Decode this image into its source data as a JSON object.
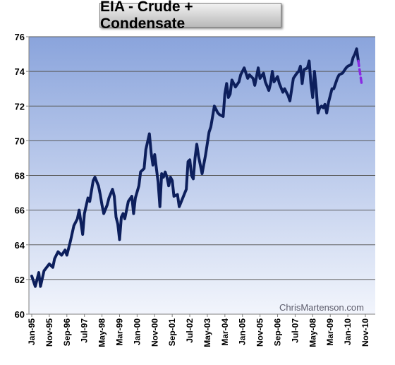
{
  "chart_data": {
    "type": "line",
    "title": "EIA - Crude + Condensate",
    "xlabel": "",
    "ylabel": "",
    "ylim": [
      60,
      76
    ],
    "yticks": [
      60,
      62,
      64,
      66,
      68,
      70,
      72,
      74,
      76
    ],
    "xticks": [
      "Jan-95",
      "Nov-95",
      "Sep-96",
      "Jul-97",
      "May-98",
      "Mar-99",
      "Jan-00",
      "Nov-00",
      "Sep-01",
      "Jul-02",
      "May-03",
      "Mar-04",
      "Jan-05",
      "Nov-05",
      "Sep-06",
      "Jul-07",
      "May-08",
      "Mar-09",
      "Jan-10",
      "Nov-10"
    ],
    "grid": true,
    "watermark": "ChrisMartenson.com",
    "colors": {
      "line": "#0d1f5c",
      "projection": "#8a2be2",
      "plot_top": "#8aa4dc",
      "plot_bottom": "#f2f5fc",
      "grid": "#5a5a5a"
    },
    "series": [
      {
        "style": "solid",
        "points": [
          [
            "Jan-95",
            62.2
          ],
          [
            "Mar-95",
            61.6
          ],
          [
            "May-95",
            62.4
          ],
          [
            "Jun-95",
            61.6
          ],
          [
            "Aug-95",
            62.5
          ],
          [
            "Nov-95",
            62.9
          ],
          [
            "Jan-96",
            62.7
          ],
          [
            "Feb-96",
            63.2
          ],
          [
            "Apr-96",
            63.6
          ],
          [
            "Jun-96",
            63.4
          ],
          [
            "Aug-96",
            63.7
          ],
          [
            "Sep-96",
            63.4
          ],
          [
            "Nov-96",
            64.2
          ],
          [
            "Jan-97",
            65.1
          ],
          [
            "Mar-97",
            65.5
          ],
          [
            "Apr-97",
            66.0
          ],
          [
            "May-97",
            65.3
          ],
          [
            "Jun-97",
            64.6
          ],
          [
            "Jul-97",
            65.8
          ],
          [
            "Sep-97",
            66.7
          ],
          [
            "Oct-97",
            66.5
          ],
          [
            "Dec-97",
            67.7
          ],
          [
            "Jan-98",
            67.9
          ],
          [
            "Mar-98",
            67.4
          ],
          [
            "Apr-98",
            66.9
          ],
          [
            "May-98",
            66.3
          ],
          [
            "Jun-98",
            65.8
          ],
          [
            "Aug-98",
            66.3
          ],
          [
            "Sep-98",
            66.7
          ],
          [
            "Nov-98",
            67.2
          ],
          [
            "Dec-98",
            66.8
          ],
          [
            "Jan-99",
            65.6
          ],
          [
            "Feb-99",
            65.2
          ],
          [
            "Mar-99",
            64.3
          ],
          [
            "Apr-99",
            65.6
          ],
          [
            "May-99",
            65.8
          ],
          [
            "Jun-99",
            65.5
          ],
          [
            "Aug-99",
            66.5
          ],
          [
            "Oct-99",
            66.8
          ],
          [
            "Nov-99",
            65.8
          ],
          [
            "Dec-99",
            66.7
          ],
          [
            "Feb-00",
            67.4
          ],
          [
            "Mar-00",
            68.2
          ],
          [
            "May-00",
            68.4
          ],
          [
            "Jun-00",
            69.5
          ],
          [
            "Aug-00",
            70.4
          ],
          [
            "Sep-00",
            69.3
          ],
          [
            "Oct-00",
            68.6
          ],
          [
            "Nov-00",
            69.2
          ],
          [
            "Jan-01",
            67.6
          ],
          [
            "Feb-01",
            66.2
          ],
          [
            "Mar-01",
            68.1
          ],
          [
            "Apr-01",
            67.9
          ],
          [
            "May-01",
            68.2
          ],
          [
            "Jun-01",
            67.9
          ],
          [
            "Jul-01",
            67.4
          ],
          [
            "Aug-01",
            67.9
          ],
          [
            "Sep-01",
            67.7
          ],
          [
            "Oct-01",
            66.8
          ],
          [
            "Dec-01",
            66.9
          ],
          [
            "Jan-02",
            66.2
          ],
          [
            "Mar-02",
            66.7
          ],
          [
            "May-02",
            67.2
          ],
          [
            "Jun-02",
            68.8
          ],
          [
            "Jul-02",
            68.9
          ],
          [
            "Aug-02",
            68.0
          ],
          [
            "Sep-02",
            67.8
          ],
          [
            "Oct-02",
            69.0
          ],
          [
            "Nov-02",
            69.8
          ],
          [
            "Dec-02",
            69.1
          ],
          [
            "Feb-03",
            68.1
          ],
          [
            "Apr-03",
            69.2
          ],
          [
            "Jun-03",
            70.5
          ],
          [
            "Jul-03",
            70.8
          ],
          [
            "Sep-03",
            72.0
          ],
          [
            "Nov-03",
            71.6
          ],
          [
            "Dec-03",
            71.5
          ],
          [
            "Feb-04",
            71.4
          ],
          [
            "Mar-04",
            72.7
          ],
          [
            "Apr-04",
            73.3
          ],
          [
            "May-04",
            72.5
          ],
          [
            "Jun-04",
            72.7
          ],
          [
            "Jul-04",
            73.5
          ],
          [
            "Sep-04",
            73.1
          ],
          [
            "Nov-04",
            73.4
          ],
          [
            "Dec-04",
            73.8
          ],
          [
            "Feb-05",
            74.2
          ],
          [
            "Apr-05",
            73.6
          ],
          [
            "May-05",
            73.8
          ],
          [
            "Jul-05",
            73.6
          ],
          [
            "Aug-05",
            73.2
          ],
          [
            "Sep-05",
            73.7
          ],
          [
            "Oct-05",
            74.2
          ],
          [
            "Nov-05",
            73.6
          ],
          [
            "Jan-06",
            73.9
          ],
          [
            "Feb-06",
            73.4
          ],
          [
            "Apr-06",
            72.9
          ],
          [
            "May-06",
            73.3
          ],
          [
            "Jun-06",
            74.0
          ],
          [
            "Jul-06",
            73.4
          ],
          [
            "Sep-06",
            73.7
          ],
          [
            "Oct-06",
            73.3
          ],
          [
            "Dec-06",
            72.8
          ],
          [
            "Jan-07",
            73.0
          ],
          [
            "Mar-07",
            72.6
          ],
          [
            "Apr-07",
            72.3
          ],
          [
            "Jun-07",
            73.6
          ],
          [
            "Aug-07",
            73.9
          ],
          [
            "Sep-07",
            74.0
          ],
          [
            "Oct-07",
            74.3
          ],
          [
            "Nov-07",
            73.3
          ],
          [
            "Dec-07",
            74.1
          ],
          [
            "Feb-08",
            74.2
          ],
          [
            "Mar-08",
            74.6
          ],
          [
            "Apr-08",
            73.3
          ],
          [
            "May-08",
            72.5
          ],
          [
            "Jun-08",
            74.0
          ],
          [
            "Jul-08",
            73.0
          ],
          [
            "Aug-08",
            71.6
          ],
          [
            "Sep-08",
            71.9
          ],
          [
            "Oct-08",
            72.0
          ],
          [
            "Nov-08",
            71.9
          ],
          [
            "Dec-08",
            72.1
          ],
          [
            "Jan-09",
            71.6
          ],
          [
            "Feb-09",
            72.2
          ],
          [
            "Mar-09",
            72.6
          ],
          [
            "Apr-09",
            73.0
          ],
          [
            "May-09",
            73.0
          ],
          [
            "Jul-09",
            73.6
          ],
          [
            "Aug-09",
            73.8
          ],
          [
            "Oct-09",
            73.9
          ],
          [
            "Dec-09",
            74.2
          ],
          [
            "Jan-10",
            74.3
          ],
          [
            "Mar-10",
            74.4
          ],
          [
            "Apr-10",
            74.8
          ],
          [
            "May-10",
            75.0
          ],
          [
            "Jun-10",
            75.3
          ],
          [
            "Jul-10",
            74.6
          ]
        ]
      },
      {
        "style": "dashed",
        "points": [
          [
            "Jul-10",
            74.6
          ],
          [
            "Sep-10",
            73.2
          ]
        ]
      }
    ]
  }
}
